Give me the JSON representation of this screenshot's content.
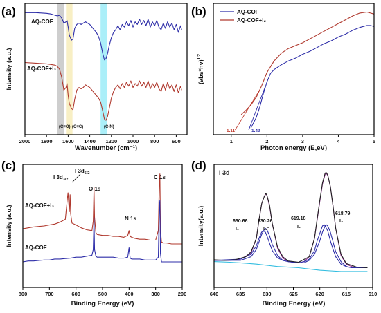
{
  "chart_data": [
    {
      "panel": "(a)",
      "type": "line",
      "xlabel": "Wavenumber (cm⁻¹)",
      "ylabel": "Intensity (a.u.)",
      "xlim": [
        2000,
        500
      ],
      "xticks": [
        2000,
        1800,
        1600,
        1400,
        1200,
        1000,
        800,
        600
      ],
      "bands": [
        {
          "from": 1700,
          "to": 1640,
          "color": "#bdbdbd",
          "label": "(C=O)"
        },
        {
          "from": 1620,
          "to": 1560,
          "color": "#f5eab0",
          "label": "(C=C)"
        },
        {
          "from": 1300,
          "to": 1240,
          "color": "#8fe9f7",
          "label": "(C-N)"
        }
      ],
      "series": [
        {
          "name": "AQ-COF",
          "color": "#2d2da8",
          "x": [
            2000,
            1900,
            1800,
            1760,
            1720,
            1700,
            1680,
            1660,
            1640,
            1620,
            1610,
            1600,
            1590,
            1570,
            1555,
            1540,
            1520,
            1500,
            1480,
            1460,
            1440,
            1420,
            1400,
            1380,
            1360,
            1340,
            1320,
            1300,
            1280,
            1265,
            1250,
            1235,
            1220,
            1200,
            1180,
            1160,
            1140,
            1120,
            1100,
            1080,
            1060,
            1040,
            1020,
            1000,
            980,
            960,
            940,
            920,
            900,
            880,
            860,
            840,
            820,
            800,
            780,
            760,
            740,
            720,
            700,
            680,
            660,
            640,
            620,
            600,
            580,
            560,
            550
          ],
          "y": [
            0.93,
            0.93,
            0.925,
            0.92,
            0.91,
            0.905,
            0.91,
            0.89,
            0.85,
            0.86,
            0.87,
            0.82,
            0.76,
            0.72,
            0.73,
            0.81,
            0.84,
            0.85,
            0.84,
            0.85,
            0.86,
            0.85,
            0.84,
            0.82,
            0.8,
            0.78,
            0.75,
            0.7,
            0.62,
            0.57,
            0.58,
            0.62,
            0.68,
            0.74,
            0.78,
            0.8,
            0.83,
            0.8,
            0.84,
            0.82,
            0.86,
            0.83,
            0.87,
            0.82,
            0.86,
            0.84,
            0.88,
            0.84,
            0.87,
            0.83,
            0.88,
            0.82,
            0.86,
            0.83,
            0.87,
            0.82,
            0.8,
            0.85,
            0.81,
            0.86,
            0.82,
            0.85,
            0.8,
            0.84,
            0.78,
            0.83,
            0.8
          ]
        },
        {
          "name": "AQ-COF+I2",
          "color": "#b0392e",
          "x": [
            2000,
            1900,
            1800,
            1760,
            1720,
            1700,
            1680,
            1660,
            1640,
            1620,
            1610,
            1600,
            1590,
            1570,
            1555,
            1540,
            1520,
            1500,
            1480,
            1460,
            1440,
            1420,
            1400,
            1380,
            1360,
            1340,
            1320,
            1300,
            1280,
            1265,
            1250,
            1235,
            1220,
            1200,
            1180,
            1160,
            1140,
            1120,
            1100,
            1080,
            1060,
            1040,
            1020,
            1000,
            980,
            960,
            940,
            920,
            900,
            880,
            860,
            840,
            820,
            800,
            780,
            760,
            740,
            720,
            700,
            680,
            660,
            640,
            620,
            600,
            580,
            560,
            550
          ],
          "y": [
            0.55,
            0.545,
            0.54,
            0.535,
            0.53,
            0.52,
            0.5,
            0.44,
            0.34,
            0.36,
            0.39,
            0.3,
            0.24,
            0.2,
            0.19,
            0.27,
            0.34,
            0.36,
            0.35,
            0.36,
            0.38,
            0.37,
            0.36,
            0.34,
            0.32,
            0.3,
            0.28,
            0.25,
            0.18,
            0.12,
            0.11,
            0.14,
            0.2,
            0.28,
            0.33,
            0.36,
            0.38,
            0.35,
            0.39,
            0.36,
            0.4,
            0.37,
            0.41,
            0.36,
            0.39,
            0.37,
            0.41,
            0.37,
            0.4,
            0.36,
            0.41,
            0.35,
            0.39,
            0.36,
            0.4,
            0.35,
            0.33,
            0.39,
            0.34,
            0.4,
            0.35,
            0.38,
            0.33,
            0.38,
            0.32,
            0.37,
            0.34
          ]
        }
      ]
    },
    {
      "panel": "(b)",
      "type": "line",
      "xlabel": "Photon energy (E,eV)",
      "ylabel": "(abs*hv)^1/2",
      "xlim": [
        0.5,
        5
      ],
      "xticks": [
        1,
        2,
        3,
        4,
        5
      ],
      "series": [
        {
          "name": "AQ-COF",
          "color": "#2d2da8",
          "x": [
            1.55,
            1.7,
            1.8,
            1.9,
            2.0,
            2.1,
            2.2,
            2.4,
            2.6,
            2.8,
            3.0,
            3.2,
            3.4,
            3.6,
            3.8,
            4.0,
            4.2,
            4.4,
            4.6,
            4.8,
            4.9,
            5.0
          ],
          "y": [
            0.02,
            0.13,
            0.24,
            0.38,
            0.5,
            0.59,
            0.63,
            0.68,
            0.72,
            0.75,
            0.79,
            0.82,
            0.86,
            0.9,
            0.93,
            0.97,
            1.0,
            1.04,
            1.07,
            1.09,
            1.09,
            1.08
          ]
        },
        {
          "name": "AQ-COF+I2",
          "color": "#b0392e",
          "x": [
            1.28,
            1.4,
            1.55,
            1.7,
            1.85,
            2.0,
            2.2,
            2.4,
            2.6,
            2.8,
            3.0,
            3.2,
            3.4,
            3.6,
            3.8,
            4.0,
            4.2,
            4.4,
            4.6,
            4.8,
            4.9,
            5.0
          ],
          "y": [
            0.16,
            0.2,
            0.26,
            0.34,
            0.46,
            0.6,
            0.72,
            0.8,
            0.85,
            0.88,
            0.91,
            0.95,
            0.99,
            1.03,
            1.07,
            1.11,
            1.15,
            1.19,
            1.22,
            1.23,
            1.22,
            1.21
          ]
        }
      ],
      "tangents": [
        {
          "color": "#c0392b",
          "from": [
            1.11,
            0.0
          ],
          "to": [
            1.8,
            0.42
          ]
        },
        {
          "color": "#2d2da8",
          "from": [
            1.49,
            0.0
          ],
          "to": [
            1.95,
            0.45
          ]
        }
      ],
      "annotations": [
        "1.11",
        "1.49"
      ],
      "legend": "top-left"
    },
    {
      "panel": "(c)",
      "type": "line",
      "xlabel": "Binding Energy (eV)",
      "ylabel": "Intensity (a.u.)",
      "xlim": [
        800,
        200
      ],
      "xticks": [
        800,
        700,
        600,
        500,
        400,
        300,
        200
      ],
      "series": [
        {
          "name": "AQ-COF+I2",
          "color": "#b0392e",
          "x": [
            800,
            780,
            760,
            740,
            720,
            700,
            680,
            660,
            640,
            632,
            630,
            625,
            622,
            620,
            615,
            600,
            580,
            560,
            540,
            535,
            532,
            530,
            525,
            520,
            500,
            480,
            460,
            440,
            420,
            405,
            400,
            396,
            390,
            380,
            360,
            340,
            320,
            300,
            290,
            286,
            284,
            282,
            278,
            270,
            260,
            240,
            220,
            200
          ],
          "y": [
            0.62,
            0.63,
            0.64,
            0.645,
            0.65,
            0.66,
            0.67,
            0.69,
            0.72,
            0.95,
            1.0,
            0.8,
            0.98,
            0.78,
            0.68,
            0.66,
            0.63,
            0.61,
            0.6,
            0.7,
            1.06,
            0.74,
            0.58,
            0.56,
            0.55,
            0.55,
            0.54,
            0.54,
            0.53,
            0.55,
            0.6,
            0.54,
            0.53,
            0.52,
            0.51,
            0.51,
            0.5,
            0.5,
            0.6,
            1.12,
            1.2,
            0.62,
            0.48,
            0.47,
            0.47,
            0.46,
            0.46,
            0.46
          ]
        },
        {
          "name": "AQ-COF",
          "color": "#2d2da8",
          "x": [
            800,
            780,
            760,
            740,
            720,
            700,
            680,
            660,
            640,
            620,
            600,
            580,
            560,
            540,
            535,
            532,
            530,
            525,
            520,
            500,
            480,
            460,
            440,
            420,
            405,
            400,
            396,
            390,
            380,
            360,
            340,
            320,
            300,
            290,
            286,
            284,
            282,
            278,
            270,
            260,
            240,
            220,
            200
          ],
          "y": [
            0.27,
            0.28,
            0.28,
            0.285,
            0.29,
            0.29,
            0.3,
            0.3,
            0.305,
            0.31,
            0.32,
            0.32,
            0.33,
            0.34,
            0.4,
            0.74,
            0.4,
            0.33,
            0.32,
            0.32,
            0.32,
            0.32,
            0.31,
            0.31,
            0.32,
            0.42,
            0.31,
            0.3,
            0.3,
            0.3,
            0.29,
            0.29,
            0.29,
            0.32,
            0.86,
            0.92,
            0.36,
            0.27,
            0.27,
            0.27,
            0.27,
            0.27,
            0.27
          ]
        }
      ],
      "labels": [
        "I 3d3/2",
        "I 3d5/2",
        "O 1s",
        "N 1s",
        "C 1s",
        "AQ-COF+I2",
        "AQ-COF"
      ]
    },
    {
      "panel": "(d)",
      "type": "line",
      "title": "I 3d",
      "xlabel": "Binding Energy (eV)",
      "ylabel": "Intensity(a.u.)",
      "xlim": [
        640,
        610
      ],
      "xticks": [
        640,
        635,
        630,
        625,
        620,
        615,
        610
      ],
      "series": [
        {
          "name": "envelope",
          "color": "#8e2d8e",
          "x": [
            640,
            637,
            635,
            633,
            632,
            631.5,
            631,
            630.5,
            630.2,
            630,
            629.5,
            629,
            628,
            627,
            626,
            624,
            623,
            622,
            621,
            620.5,
            620,
            619.5,
            619,
            618.8,
            618.5,
            618,
            617.5,
            617,
            616,
            615,
            614,
            613,
            612,
            611
          ],
          "y": [
            0.22,
            0.22,
            0.23,
            0.28,
            0.4,
            0.55,
            0.68,
            0.74,
            0.76,
            0.75,
            0.66,
            0.52,
            0.32,
            0.24,
            0.21,
            0.2,
            0.21,
            0.25,
            0.4,
            0.55,
            0.7,
            0.84,
            0.92,
            0.93,
            0.91,
            0.82,
            0.66,
            0.48,
            0.26,
            0.19,
            0.17,
            0.16,
            0.16,
            0.16
          ]
        },
        {
          "name": "I2 (630.66 / 619.18)",
          "color": "#2d2da8",
          "x": [
            640,
            635,
            633,
            632,
            631.5,
            631,
            630.66,
            630.3,
            630,
            629.5,
            629,
            628,
            627,
            626,
            624,
            623,
            622,
            621,
            620.5,
            620,
            619.5,
            619.18,
            619,
            618.5,
            618,
            617.5,
            617,
            616,
            615,
            614,
            612,
            611
          ],
          "y": [
            0.22,
            0.23,
            0.27,
            0.34,
            0.4,
            0.45,
            0.46,
            0.45,
            0.42,
            0.36,
            0.3,
            0.24,
            0.22,
            0.21,
            0.2,
            0.21,
            0.23,
            0.3,
            0.38,
            0.44,
            0.5,
            0.51,
            0.5,
            0.46,
            0.38,
            0.31,
            0.25,
            0.19,
            0.17,
            0.16,
            0.16,
            0.16
          ]
        },
        {
          "name": "I3- (630.26 / 618.79)",
          "color": "#2d2da8",
          "x": [
            640,
            635,
            633,
            632,
            631.5,
            631,
            630.5,
            630.26,
            630,
            629.5,
            629,
            628,
            627,
            626,
            624,
            623,
            622,
            621,
            620,
            619.5,
            619,
            618.79,
            618.5,
            618,
            617.5,
            617,
            616,
            615,
            614,
            612,
            611
          ],
          "y": [
            0.22,
            0.22,
            0.25,
            0.31,
            0.37,
            0.43,
            0.47,
            0.48,
            0.47,
            0.42,
            0.35,
            0.26,
            0.22,
            0.21,
            0.2,
            0.2,
            0.22,
            0.27,
            0.38,
            0.45,
            0.5,
            0.51,
            0.5,
            0.45,
            0.37,
            0.29,
            0.21,
            0.17,
            0.16,
            0.16,
            0.16
          ]
        },
        {
          "name": "background",
          "color": "#33bde0",
          "x": [
            640,
            637,
            635,
            632,
            630,
            628,
            626,
            624,
            622,
            620,
            618,
            616,
            614,
            612,
            611
          ],
          "y": [
            0.21,
            0.205,
            0.2,
            0.19,
            0.18,
            0.17,
            0.165,
            0.16,
            0.15,
            0.14,
            0.135,
            0.13,
            0.13,
            0.13,
            0.13
          ]
        },
        {
          "name": "raw",
          "color": "#222222",
          "x": [
            640,
            638,
            636,
            634,
            633,
            632,
            631.5,
            631,
            630.5,
            630.2,
            630,
            629.5,
            629,
            628,
            627,
            626,
            624,
            622,
            621,
            620.5,
            620,
            619.5,
            619,
            618.8,
            618.5,
            618,
            617.5,
            617,
            616,
            615,
            613,
            611
          ],
          "y": [
            0.225,
            0.22,
            0.225,
            0.25,
            0.29,
            0.4,
            0.55,
            0.68,
            0.74,
            0.765,
            0.75,
            0.67,
            0.52,
            0.33,
            0.25,
            0.215,
            0.205,
            0.25,
            0.4,
            0.56,
            0.71,
            0.85,
            0.93,
            0.935,
            0.915,
            0.82,
            0.66,
            0.48,
            0.27,
            0.195,
            0.165,
            0.16
          ]
        }
      ],
      "peak_labels": [
        {
          "energy": "630.66",
          "species": "I2"
        },
        {
          "energy": "630.26",
          "species": "I3⁻"
        },
        {
          "energy": "619.18",
          "species": "I2"
        },
        {
          "energy": "618.79",
          "species": "I3⁻"
        }
      ]
    }
  ],
  "panels": {
    "a": {
      "label": "(a)",
      "s1": "AQ-COF",
      "s2": "AQ-COF+I₂",
      "xlabel": "Wavenumber (cm⁻¹)",
      "ylabel": "Intensity (a.u.)",
      "band1": "(C=O)",
      "band2": "(C=C)",
      "band3": "(C-N)"
    },
    "b": {
      "label": "(b)",
      "leg1": "AQ-COF",
      "leg2": "AQ-COF+I₂",
      "xlabel": "Photon energy (E,eV)",
      "ylabel": "(abs*hv)",
      "ylabel_sup": "1/2",
      "ann1": "1.11",
      "ann2": "1.49"
    },
    "c": {
      "label": "(c)",
      "xlabel": "Binding Energy (eV)",
      "ylabel": "Intensity (a.u.)",
      "l1": "I 3d",
      "l1sub": "3/2",
      "l2": "I 3d",
      "l2sub": "5/2",
      "o": "O 1s",
      "n": "N 1s",
      "c": "C 1s",
      "s1": "AQ-COF+I₂",
      "s2": "AQ-COF"
    },
    "d": {
      "label": "(d)",
      "title": "I 3d",
      "xlabel": "Binding Energy (eV)",
      "ylabel": "Intensity(a.u.)",
      "p1": "630.66",
      "p1s": "I₂",
      "p2": "630.26",
      "p2s": "I₃⁻",
      "p3": "619.18",
      "p3s": "I₂",
      "p4": "618.79",
      "p4s": "I₃⁻"
    }
  }
}
